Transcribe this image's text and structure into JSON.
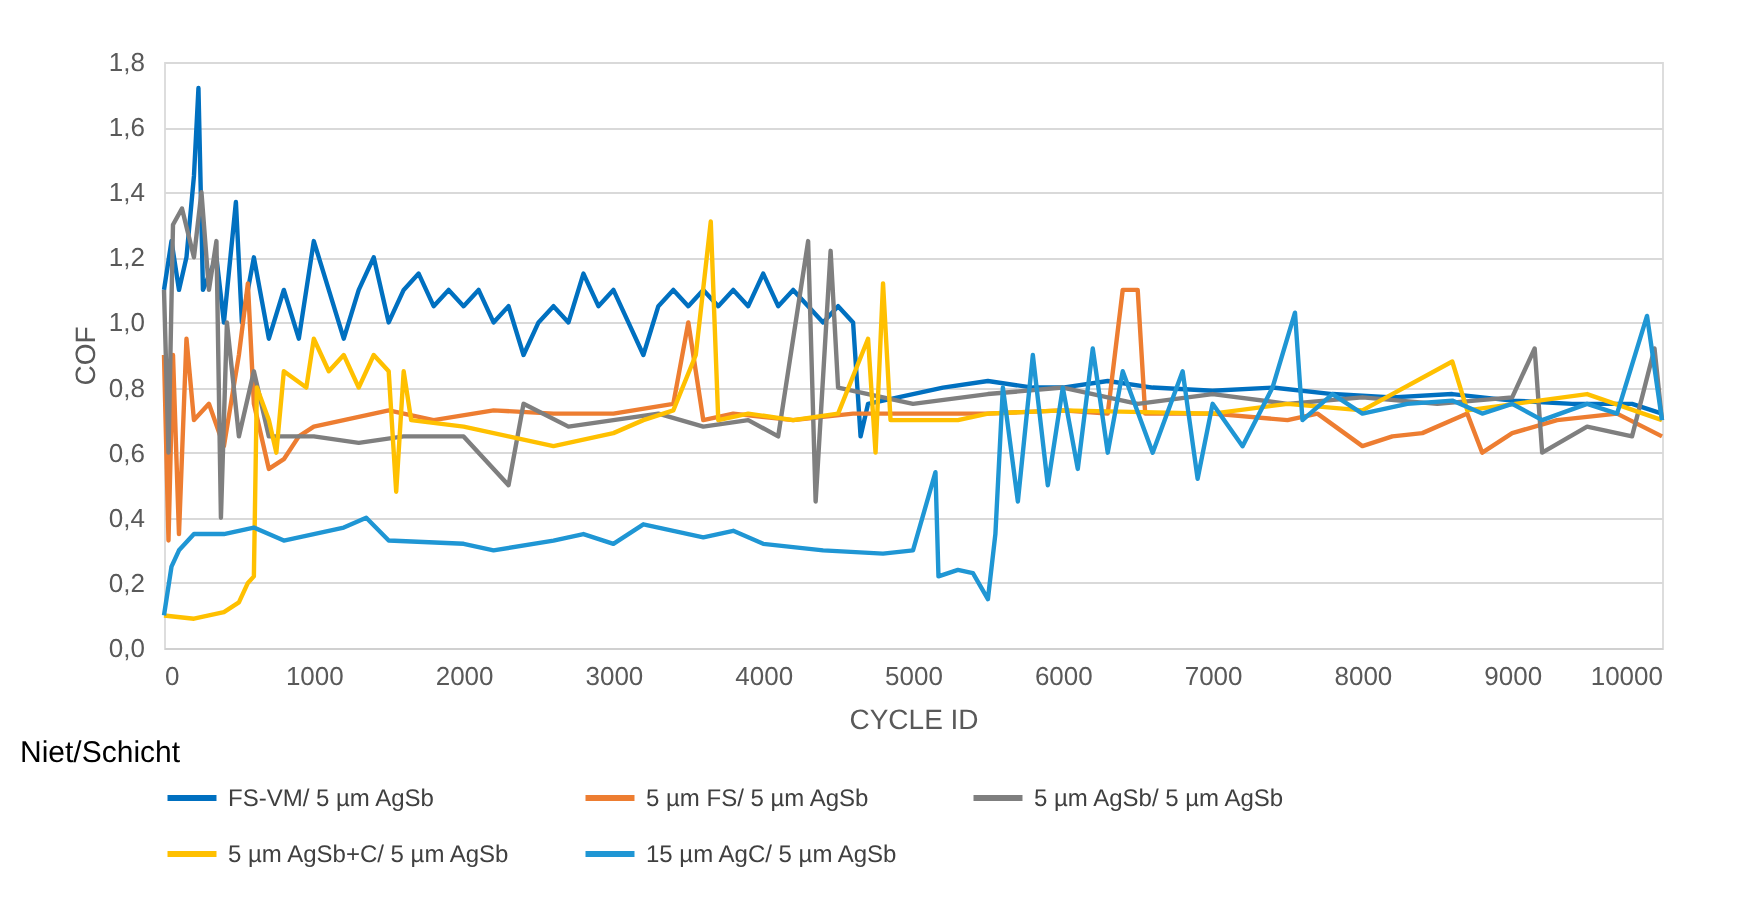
{
  "chart_data": {
    "type": "line",
    "xlabel": "CYCLE ID",
    "ylabel": "COF",
    "annotations": [
      "Niet/Schicht"
    ],
    "xlim": [
      0,
      10000
    ],
    "xticks": [
      0,
      1000,
      2000,
      3000,
      4000,
      5000,
      6000,
      7000,
      8000,
      9000,
      10000
    ],
    "ylim": [
      0,
      1.8
    ],
    "yticks": [
      {
        "value": 0,
        "label": "0,0"
      },
      {
        "value": 0.2,
        "label": "0,2"
      },
      {
        "value": 0.4,
        "label": "0,4"
      },
      {
        "value": 0.6,
        "label": "0,6"
      },
      {
        "value": 0.8,
        "label": "0,8"
      },
      {
        "value": 1.0,
        "label": "1,0"
      },
      {
        "value": 1.2,
        "label": "1,2"
      },
      {
        "value": 1.4,
        "label": "1,4"
      },
      {
        "value": 1.6,
        "label": "1,6"
      },
      {
        "value": 1.8,
        "label": "1,8"
      }
    ],
    "grid": "y",
    "legend": "bottom",
    "marker": "none",
    "line_style": "solid",
    "series": [
      {
        "name": "FS-VM/ 5 µm AgSb",
        "color": "#0070c0",
        "x": [
          0,
          50,
          100,
          150,
          200,
          230,
          260,
          350,
          400,
          480,
          520,
          600,
          700,
          800,
          900,
          1000,
          1100,
          1200,
          1300,
          1400,
          1500,
          1600,
          1700,
          1800,
          1900,
          2000,
          2100,
          2200,
          2300,
          2400,
          2500,
          2600,
          2700,
          2800,
          2900,
          3000,
          3100,
          3200,
          3300,
          3400,
          3500,
          3600,
          3700,
          3800,
          3900,
          4000,
          4100,
          4200,
          4300,
          4400,
          4500,
          4600,
          4650,
          4700,
          5000,
          5200,
          5500,
          5800,
          6000,
          6300,
          6600,
          7000,
          7400,
          7800,
          8200,
          8600,
          9000,
          9400,
          9800,
          10000
        ],
        "values": [
          1.1,
          1.25,
          1.1,
          1.2,
          1.45,
          1.72,
          1.1,
          1.2,
          1.0,
          1.37,
          1.0,
          1.2,
          0.95,
          1.1,
          0.95,
          1.25,
          1.1,
          0.95,
          1.1,
          1.2,
          1.0,
          1.1,
          1.15,
          1.05,
          1.1,
          1.05,
          1.1,
          1.0,
          1.05,
          0.9,
          1.0,
          1.05,
          1.0,
          1.15,
          1.05,
          1.1,
          1.0,
          0.9,
          1.05,
          1.1,
          1.05,
          1.1,
          1.05,
          1.1,
          1.05,
          1.15,
          1.05,
          1.1,
          1.05,
          1.0,
          1.05,
          1.0,
          0.65,
          0.75,
          0.78,
          0.8,
          0.82,
          0.8,
          0.8,
          0.82,
          0.8,
          0.79,
          0.8,
          0.78,
          0.77,
          0.78,
          0.76,
          0.75,
          0.75,
          0.72
        ]
      },
      {
        "name": "5 µm FS/ 5 µm AgSb",
        "color": "#ed7d31",
        "x": [
          0,
          30,
          60,
          100,
          150,
          200,
          300,
          400,
          500,
          560,
          600,
          700,
          800,
          900,
          1000,
          1200,
          1500,
          1800,
          2200,
          2600,
          3000,
          3400,
          3500,
          3600,
          3800,
          4200,
          4600,
          5000,
          5500,
          6000,
          6300,
          6400,
          6500,
          6550,
          7000,
          7500,
          7700,
          8000,
          8200,
          8400,
          8700,
          8800,
          9000,
          9300,
          9700,
          10000
        ],
        "values": [
          0.9,
          0.33,
          0.9,
          0.35,
          0.95,
          0.7,
          0.75,
          0.62,
          0.9,
          1.12,
          0.75,
          0.55,
          0.58,
          0.65,
          0.68,
          0.7,
          0.73,
          0.7,
          0.73,
          0.72,
          0.72,
          0.75,
          1.0,
          0.7,
          0.72,
          0.7,
          0.72,
          0.72,
          0.72,
          0.73,
          0.72,
          1.1,
          1.1,
          0.72,
          0.72,
          0.7,
          0.72,
          0.62,
          0.65,
          0.66,
          0.72,
          0.6,
          0.66,
          0.7,
          0.72,
          0.65
        ]
      },
      {
        "name": "5 µm AgSb/ 5 µm AgSb",
        "color": "#7f7f7f",
        "x": [
          0,
          30,
          60,
          120,
          200,
          250,
          300,
          350,
          380,
          420,
          500,
          600,
          700,
          800,
          1000,
          1300,
          1600,
          2000,
          2300,
          2400,
          2700,
          3000,
          3300,
          3600,
          3900,
          4100,
          4300,
          4350,
          4450,
          4500,
          4700,
          5000,
          5500,
          6000,
          6500,
          7000,
          7500,
          8000,
          8500,
          9000,
          9150,
          9200,
          9500,
          9800,
          9950,
          10000
        ],
        "values": [
          1.1,
          0.6,
          1.3,
          1.35,
          1.2,
          1.4,
          1.1,
          1.25,
          0.4,
          1.0,
          0.65,
          0.85,
          0.65,
          0.65,
          0.65,
          0.63,
          0.65,
          0.65,
          0.5,
          0.75,
          0.68,
          0.7,
          0.72,
          0.68,
          0.7,
          0.65,
          1.25,
          0.45,
          1.22,
          0.8,
          0.78,
          0.75,
          0.78,
          0.8,
          0.75,
          0.78,
          0.75,
          0.77,
          0.75,
          0.77,
          0.92,
          0.6,
          0.68,
          0.65,
          0.92,
          0.7
        ]
      },
      {
        "name": "5 µm AgSb+C/ 5 µm AgSb",
        "color": "#ffc000",
        "x": [
          0,
          200,
          400,
          500,
          560,
          600,
          620,
          700,
          750,
          800,
          950,
          1000,
          1100,
          1200,
          1300,
          1400,
          1500,
          1550,
          1600,
          1650,
          2000,
          2300,
          2600,
          3000,
          3200,
          3400,
          3550,
          3650,
          3700,
          3900,
          4200,
          4500,
          4700,
          4750,
          4800,
          4850,
          5000,
          5300,
          5500,
          6000,
          7000,
          7500,
          8000,
          8600,
          8700,
          9500,
          10000
        ],
        "values": [
          0.1,
          0.09,
          0.11,
          0.14,
          0.2,
          0.22,
          0.8,
          0.7,
          0.6,
          0.85,
          0.8,
          0.95,
          0.85,
          0.9,
          0.8,
          0.9,
          0.85,
          0.48,
          0.85,
          0.7,
          0.68,
          0.65,
          0.62,
          0.66,
          0.7,
          0.73,
          0.9,
          1.31,
          0.7,
          0.72,
          0.7,
          0.72,
          0.95,
          0.6,
          1.12,
          0.7,
          0.7,
          0.7,
          0.72,
          0.73,
          0.72,
          0.75,
          0.73,
          0.88,
          0.73,
          0.78,
          0.7
        ]
      },
      {
        "name": "15 µm AgC/ 5 µm AgSb",
        "color": "#1f96d4",
        "x": [
          0,
          50,
          100,
          200,
          400,
          600,
          800,
          1000,
          1200,
          1350,
          1500,
          2000,
          2200,
          2600,
          2800,
          3000,
          3200,
          3400,
          3600,
          3800,
          4000,
          4400,
          4800,
          5000,
          5150,
          5170,
          5300,
          5400,
          5500,
          5550,
          5600,
          5700,
          5800,
          5900,
          6000,
          6100,
          6200,
          6300,
          6400,
          6600,
          6800,
          6900,
          7000,
          7200,
          7400,
          7550,
          7600,
          7800,
          8000,
          8300,
          8600,
          8800,
          9000,
          9200,
          9500,
          9700,
          9900,
          10000
        ],
        "values": [
          0.1,
          0.25,
          0.3,
          0.35,
          0.35,
          0.37,
          0.33,
          0.35,
          0.37,
          0.4,
          0.33,
          0.32,
          0.3,
          0.33,
          0.35,
          0.32,
          0.38,
          0.36,
          0.34,
          0.36,
          0.32,
          0.3,
          0.29,
          0.3,
          0.54,
          0.22,
          0.24,
          0.23,
          0.15,
          0.35,
          0.8,
          0.45,
          0.9,
          0.5,
          0.8,
          0.55,
          0.92,
          0.6,
          0.85,
          0.6,
          0.85,
          0.52,
          0.75,
          0.62,
          0.8,
          1.03,
          0.7,
          0.78,
          0.72,
          0.75,
          0.76,
          0.72,
          0.75,
          0.7,
          0.75,
          0.72,
          1.02,
          0.7
        ]
      }
    ]
  }
}
